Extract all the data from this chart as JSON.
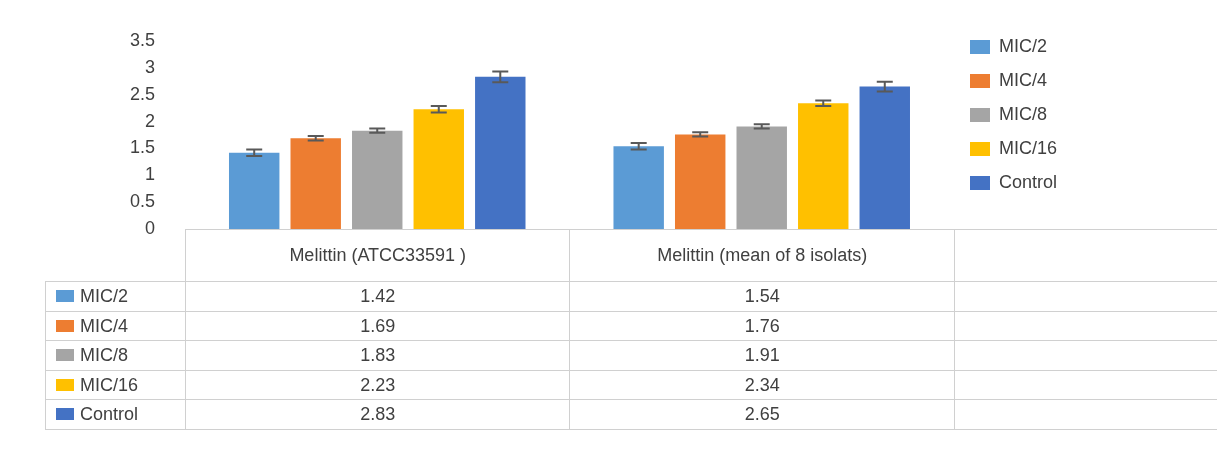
{
  "chart_data": {
    "type": "bar",
    "categories": [
      "Melittin (ATCC33591 )",
      "Melittin (mean of 8 isolats)"
    ],
    "series": [
      {
        "name": "MIC/2",
        "color": "#5b9bd5",
        "values": [
          1.42,
          1.54
        ],
        "errors": [
          0.06,
          0.06
        ]
      },
      {
        "name": "MIC/4",
        "color": "#ed7d31",
        "values": [
          1.69,
          1.76
        ],
        "errors": [
          0.04,
          0.04
        ]
      },
      {
        "name": "MIC/8",
        "color": "#a5a5a5",
        "values": [
          1.83,
          1.91
        ],
        "errors": [
          0.04,
          0.04
        ]
      },
      {
        "name": "MIC/16",
        "color": "#ffc000",
        "values": [
          2.23,
          2.34
        ],
        "errors": [
          0.06,
          0.05
        ]
      },
      {
        "name": "Control",
        "color": "#4472c4",
        "values": [
          2.83,
          2.65
        ],
        "errors": [
          0.1,
          0.09
        ]
      }
    ],
    "ylim": [
      0,
      3.5
    ],
    "yticks": [
      0,
      0.5,
      1,
      1.5,
      2,
      2.5,
      3,
      3.5
    ],
    "grid": false,
    "legend": "right",
    "data_labels": true
  }
}
